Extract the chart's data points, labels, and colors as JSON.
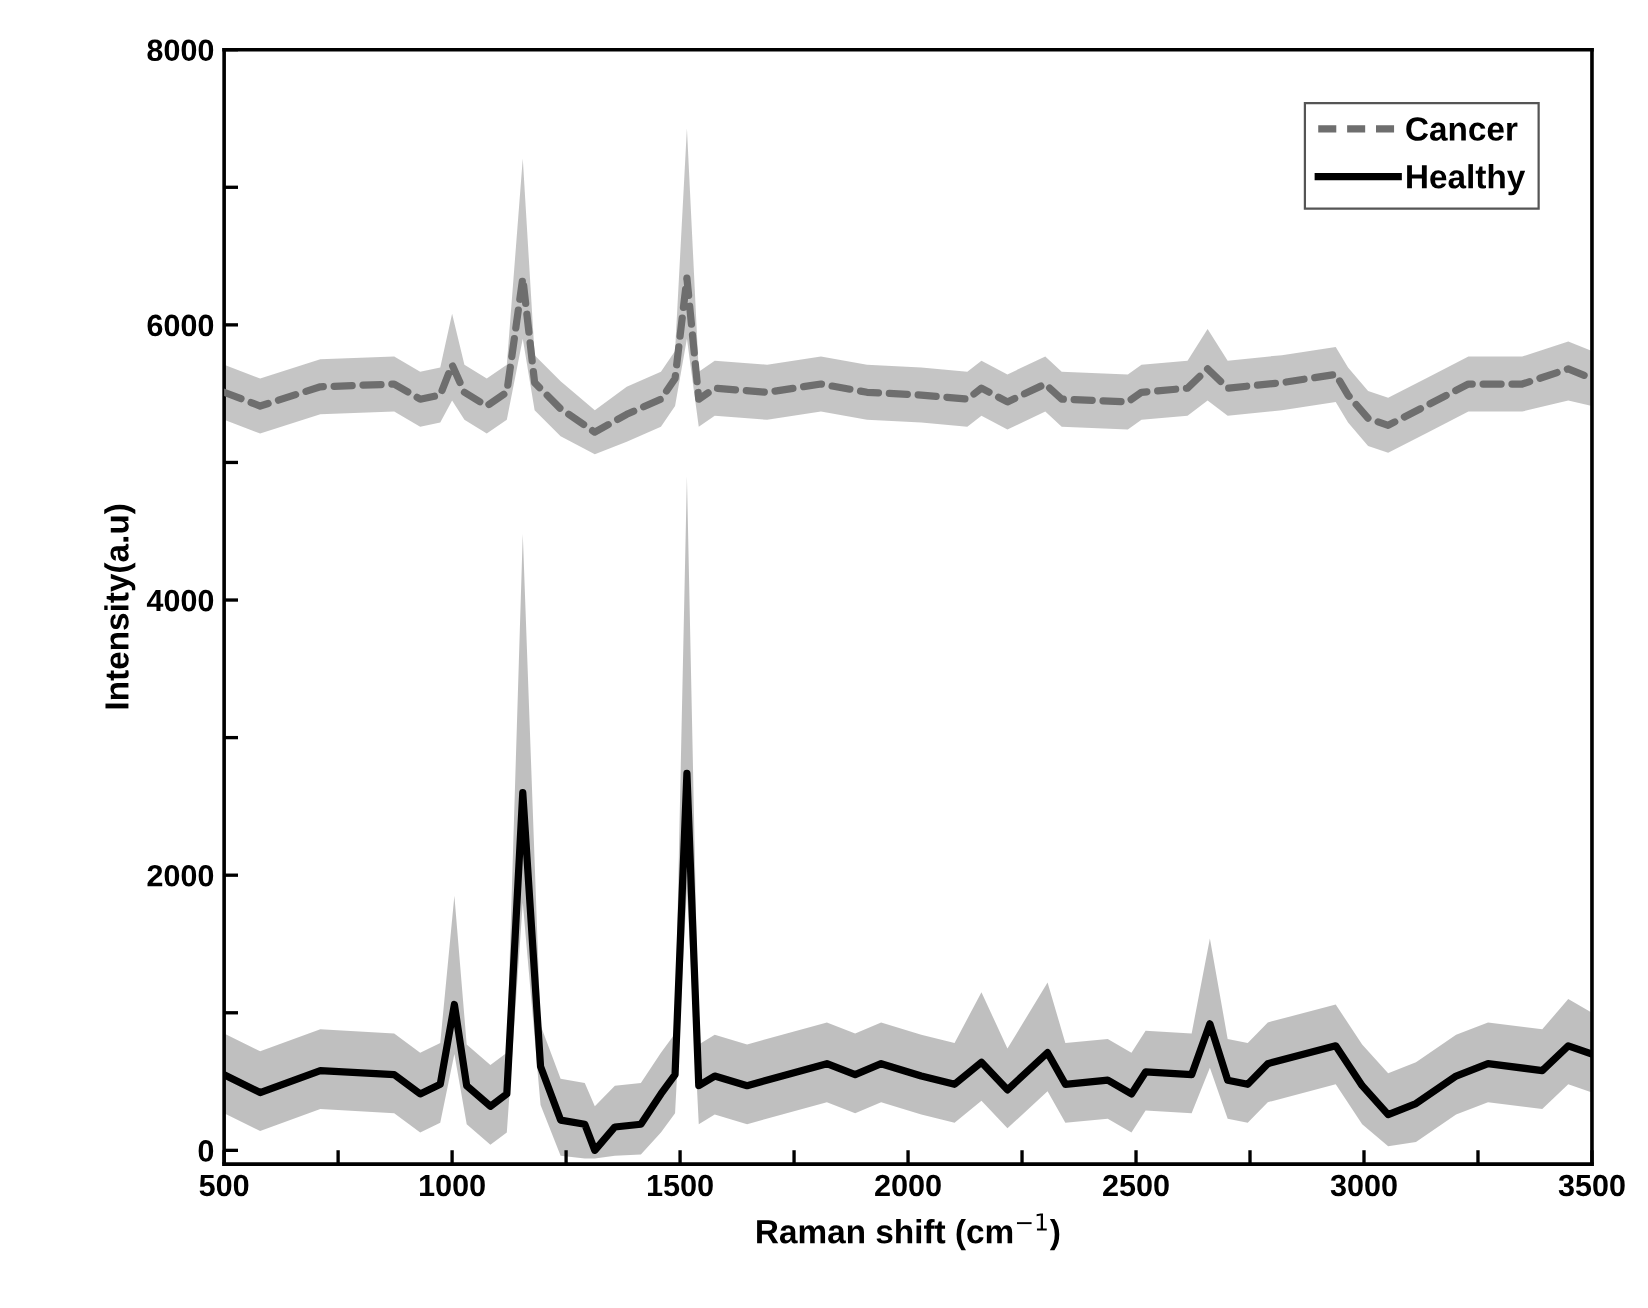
{
  "chart_data": {
    "type": "line",
    "xlabel": "Raman shift (cm$^{−1}$)",
    "ylabel": "Intensity(a.u)",
    "xlim": [
      500,
      3500
    ],
    "ylim": [
      -100,
      8000
    ],
    "xticks": [
      500,
      {
        "value": 750,
        "label": null
      },
      1000,
      {
        "value": 1250,
        "label": null
      },
      1500,
      {
        "value": 1750,
        "label": null
      },
      2000,
      {
        "value": 2250,
        "label": null
      },
      2500,
      {
        "value": 2750,
        "label": null
      },
      3000,
      {
        "value": 3250,
        "label": null
      },
      3500
    ],
    "yticks": [
      0,
      {
        "value": 1000,
        "label": null
      },
      2000,
      {
        "value": 3000,
        "label": null
      },
      4000,
      {
        "value": 5000,
        "label": null
      },
      6000,
      {
        "value": 7000,
        "label": null
      },
      8000
    ],
    "grid": false,
    "legend": "top right",
    "series": [
      {
        "name": "Cancer",
        "color": "#6e6e6e",
        "line_style": "dashed",
        "x": [
          500,
          579,
          711,
          873,
          930,
          974,
          1000,
          1027,
          1076,
          1120,
          1155,
          1181,
          1238,
          1313,
          1383,
          1458,
          1489,
          1515,
          1541,
          1576,
          1691,
          1809,
          1910,
          2029,
          2130,
          2161,
          2218,
          2301,
          2337,
          2482,
          2512,
          2613,
          2657,
          2701,
          2820,
          2938,
          2965,
          3009,
          3053,
          3141,
          3229,
          3347,
          3448,
          3500
        ],
        "values": [
          5510,
          5410,
          5550,
          5570,
          5460,
          5490,
          5710,
          5510,
          5410,
          5510,
          6340,
          5580,
          5390,
          5220,
          5350,
          5460,
          5610,
          6340,
          5460,
          5540,
          5510,
          5570,
          5510,
          5490,
          5460,
          5540,
          5440,
          5570,
          5460,
          5440,
          5510,
          5540,
          5680,
          5540,
          5580,
          5640,
          5490,
          5320,
          5270,
          5420,
          5570,
          5570,
          5680,
          5610
        ],
        "lower": [
          5310,
          5210,
          5350,
          5370,
          5260,
          5290,
          5450,
          5310,
          5210,
          5310,
          5900,
          5380,
          5190,
          5060,
          5150,
          5260,
          5410,
          5900,
          5260,
          5340,
          5310,
          5370,
          5310,
          5290,
          5260,
          5340,
          5240,
          5370,
          5260,
          5240,
          5310,
          5340,
          5450,
          5340,
          5380,
          5440,
          5290,
          5120,
          5070,
          5220,
          5370,
          5370,
          5450,
          5410
        ],
        "upper": [
          5710,
          5610,
          5750,
          5770,
          5660,
          5690,
          6080,
          5710,
          5610,
          5710,
          7210,
          5780,
          5590,
          5380,
          5550,
          5660,
          5810,
          7430,
          5660,
          5740,
          5710,
          5770,
          5710,
          5690,
          5660,
          5740,
          5640,
          5770,
          5660,
          5640,
          5710,
          5740,
          5970,
          5740,
          5780,
          5840,
          5690,
          5520,
          5470,
          5620,
          5770,
          5770,
          5880,
          5810
        ]
      },
      {
        "name": "Healthy",
        "color": "#000000",
        "line_style": "solid",
        "x": [
          500,
          579,
          711,
          873,
          930,
          974,
          1005,
          1032,
          1084,
          1120,
          1155,
          1194,
          1238,
          1291,
          1313,
          1357,
          1414,
          1458,
          1489,
          1515,
          1541,
          1576,
          1647,
          1822,
          1884,
          1941,
          2029,
          2102,
          2161,
          2218,
          2306,
          2345,
          2438,
          2490,
          2521,
          2622,
          2662,
          2701,
          2745,
          2789,
          2938,
          2996,
          3053,
          3114,
          3202,
          3272,
          3391,
          3448,
          3500
        ],
        "values": [
          550,
          420,
          580,
          550,
          410,
          480,
          1060,
          470,
          320,
          410,
          2600,
          610,
          220,
          190,
          0,
          170,
          190,
          410,
          550,
          2740,
          470,
          540,
          470,
          630,
          550,
          630,
          540,
          480,
          640,
          440,
          710,
          480,
          510,
          410,
          570,
          550,
          920,
          510,
          480,
          630,
          760,
          470,
          260,
          340,
          540,
          630,
          580,
          760,
          700
        ],
        "lower": [
          270,
          140,
          300,
          270,
          130,
          200,
          700,
          190,
          40,
          130,
          1800,
          330,
          -40,
          -60,
          -60,
          -40,
          -30,
          130,
          270,
          1900,
          190,
          260,
          190,
          350,
          270,
          350,
          260,
          200,
          360,
          160,
          430,
          200,
          230,
          130,
          290,
          270,
          600,
          230,
          200,
          350,
          480,
          190,
          30,
          60,
          260,
          350,
          300,
          480,
          420
        ],
        "upper": [
          850,
          720,
          880,
          850,
          710,
          780,
          1850,
          770,
          620,
          710,
          4480,
          910,
          520,
          490,
          320,
          470,
          490,
          710,
          850,
          4900,
          770,
          840,
          770,
          930,
          850,
          930,
          840,
          780,
          1150,
          740,
          1220,
          780,
          810,
          710,
          870,
          850,
          1540,
          810,
          780,
          930,
          1060,
          770,
          560,
          640,
          840,
          930,
          880,
          1100,
          1000
        ]
      }
    ]
  }
}
